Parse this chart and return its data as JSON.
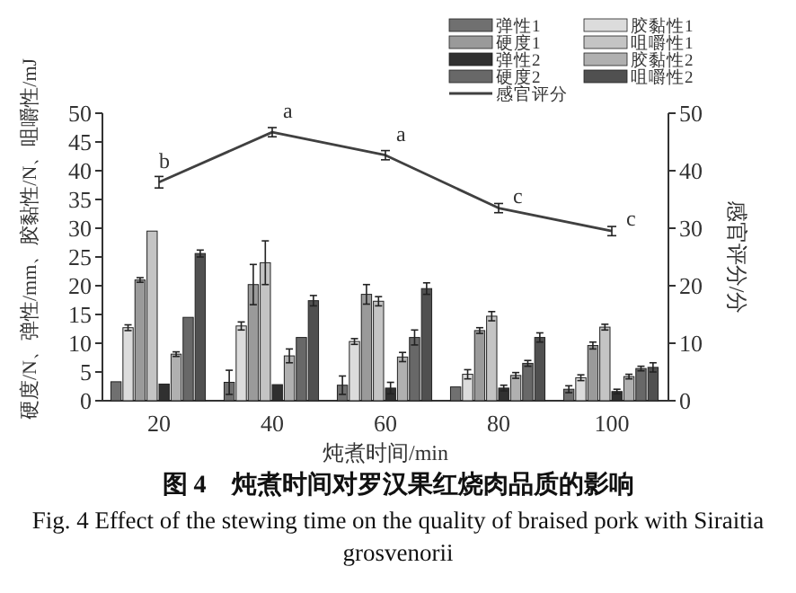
{
  "chart_data": {
    "type": "bar",
    "title": "图 4　炖煮时间对罗汉果红烧肉品质的影响",
    "subtitle": "Fig. 4 Effect of the stewing time on the quality of braised pork with Siraitia grosvenorii",
    "xlabel": "炖煮时间/min",
    "ylabel": "硬度/N、弹性/mm、胶黏性/N、咀嚼性/mJ",
    "y2label": "感官评分/分",
    "categories": [
      "20",
      "40",
      "60",
      "80",
      "100"
    ],
    "series": [
      {
        "name": "弹性1",
        "color": "#707070",
        "values": [
          3.3,
          3.2,
          2.7,
          2.4,
          2
        ],
        "errors": [
          null,
          2.1,
          1.6,
          null,
          0.6
        ]
      },
      {
        "name": "胶黏性1",
        "color": "#dcdcdc",
        "values": [
          12.7,
          13,
          10.3,
          4.6,
          4
        ],
        "errors": [
          0.5,
          0.7,
          0.5,
          0.8,
          0.5
        ]
      },
      {
        "name": "硬度1",
        "color": "#9a9a9a",
        "values": [
          21,
          20.2,
          18.5,
          12.2,
          9.6
        ],
        "errors": [
          0.4,
          3.5,
          1.7,
          0.5,
          0.6
        ]
      },
      {
        "name": "咀嚼性1",
        "color": "#c4c4c4",
        "values": [
          29.5,
          24,
          17.3,
          14.7,
          12.8
        ],
        "errors": [
          null,
          3.8,
          0.8,
          0.8,
          0.5
        ]
      },
      {
        "name": "弹性2",
        "color": "#303030",
        "values": [
          2.9,
          2.8,
          2.2,
          2.2,
          1.6
        ],
        "errors": [
          null,
          null,
          1,
          0.5,
          0.4
        ]
      },
      {
        "name": "胶黏性2",
        "color": "#b0b0b0",
        "values": [
          8.1,
          7.8,
          7.6,
          4.4,
          4.2
        ],
        "errors": [
          0.4,
          1.2,
          0.8,
          0.5,
          0.4
        ]
      },
      {
        "name": "硬度2",
        "color": "#686868",
        "values": [
          14.5,
          11,
          11,
          6.5,
          5.6
        ],
        "errors": [
          null,
          null,
          1.3,
          0.5,
          0.4
        ]
      },
      {
        "name": "咀嚼性2",
        "color": "#505050",
        "values": [
          25.6,
          17.4,
          19.5,
          11,
          5.8
        ],
        "errors": [
          0.6,
          0.9,
          1,
          0.8,
          0.8
        ]
      },
      {
        "name": "感官评分",
        "type": "line",
        "axis": "y2",
        "color": "#404040",
        "values": [
          38,
          46.7,
          42.7,
          33.5,
          29.5
        ],
        "errors": [
          1,
          0.8,
          0.8,
          0.8,
          0.8
        ]
      }
    ],
    "ylim": [
      0,
      50
    ],
    "yticks": [
      0,
      5,
      10,
      15,
      20,
      25,
      30,
      35,
      40,
      45,
      50
    ],
    "y2lim": [
      0,
      50
    ],
    "y2ticks": [
      0,
      10,
      20,
      30,
      40,
      50
    ],
    "annotations": [
      {
        "text": "b",
        "x": "20",
        "y": 38
      },
      {
        "text": "a",
        "x": "40",
        "y": 46.7
      },
      {
        "text": "a",
        "x": "60",
        "y": 42.7
      },
      {
        "text": "c",
        "x": "80",
        "y": 33.5
      },
      {
        "text": "c",
        "x": "100",
        "y": 29.5
      }
    ],
    "legend": "top right",
    "grid": false
  }
}
